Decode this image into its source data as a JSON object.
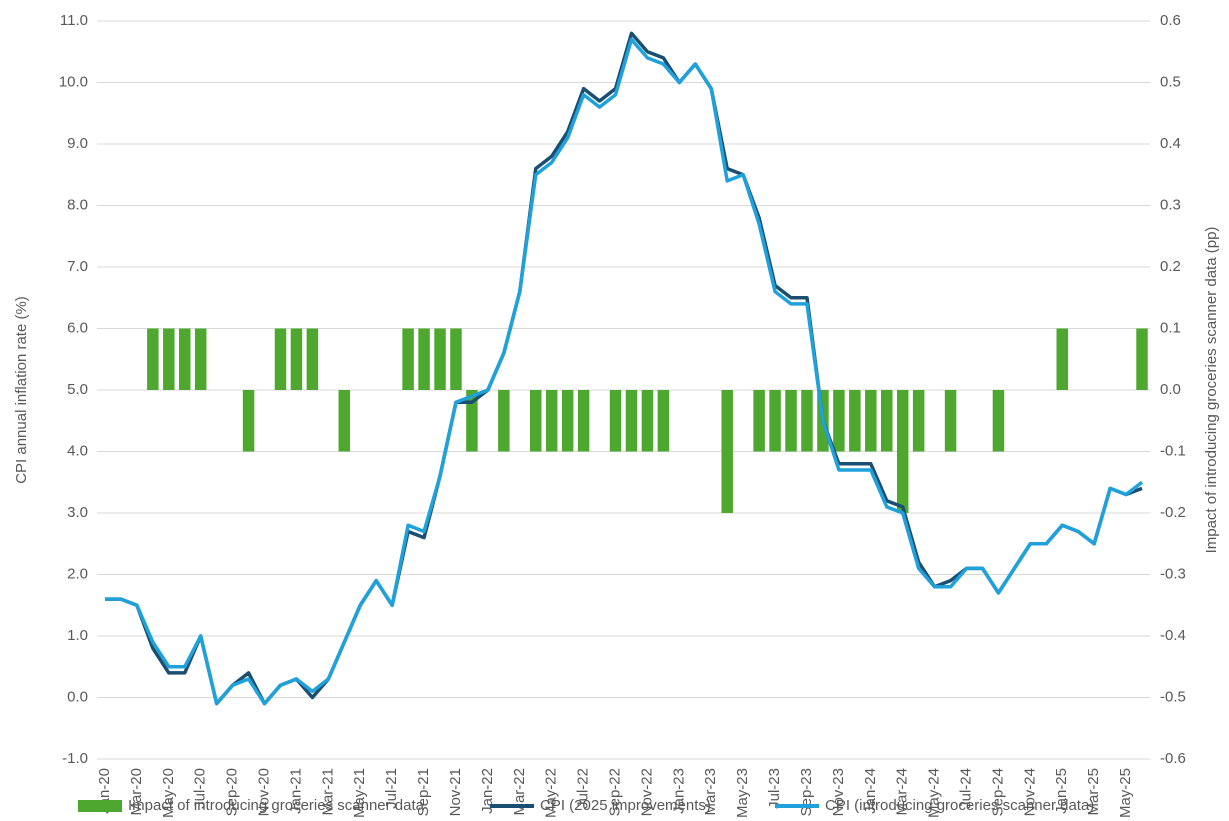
{
  "chart_data": {
    "type": "bar_line",
    "y_label": "CPI annual inflation rate (%)",
    "y2_label": "Impact of introducing groceries scanner data (pp)",
    "categories": [
      "Jan-20",
      null,
      "Mar-20",
      null,
      "May-20",
      null,
      "Jul-20",
      null,
      "Sep-20",
      null,
      "Nov-20",
      null,
      "Jan-21",
      null,
      "Mar-21",
      null,
      "May-21",
      null,
      "Jul-21",
      null,
      "Sep-21",
      null,
      "Nov-21",
      null,
      "Jan-22",
      null,
      "Mar-22",
      null,
      "May-22",
      null,
      "Jul-22",
      null,
      "Sep-22",
      null,
      "Nov-22",
      null,
      "Jan-23",
      null,
      "Mar-23",
      null,
      "May-23",
      null,
      "Jul-23",
      null,
      "Sep-23",
      null,
      "Nov-23",
      null,
      "Jan-24",
      null,
      "Mar-24",
      null,
      "May-24",
      null,
      "Jul-24",
      null,
      "Sep-24",
      null,
      "Nov-24",
      null,
      "Jan-25",
      null,
      "Mar-25",
      null,
      "May-25",
      null
    ],
    "series": [
      {
        "name": "Impact of introducing groceries scanner data",
        "type": "bar",
        "axis": "y2",
        "color": "#4ea72e",
        "values": [
          0,
          0,
          0,
          0.1,
          0.1,
          0.1,
          0.1,
          0,
          0,
          -0.1,
          0,
          0.1,
          0.1,
          0.1,
          0,
          -0.1,
          0,
          0,
          0,
          0.1,
          0.1,
          0.1,
          0.1,
          -0.1,
          0,
          -0.1,
          0,
          -0.1,
          -0.1,
          -0.1,
          -0.1,
          0,
          -0.1,
          -0.1,
          -0.1,
          -0.1,
          0,
          0,
          0,
          -0.2,
          0,
          -0.1,
          -0.1,
          -0.1,
          -0.1,
          -0.1,
          -0.1,
          -0.1,
          -0.1,
          -0.1,
          -0.2,
          -0.1,
          0,
          -0.1,
          0,
          0,
          -0.1,
          0,
          0,
          0,
          0.1,
          0,
          0,
          0,
          0,
          0.1
        ]
      },
      {
        "name": "CPI (2025 improvements)",
        "type": "line",
        "color": "#1b4f72",
        "values": [
          1.6,
          1.6,
          1.5,
          0.8,
          0.4,
          0.4,
          1.0,
          -0.1,
          0.2,
          0.4,
          -0.1,
          0.2,
          0.3,
          0.0,
          0.3,
          0.9,
          1.5,
          1.9,
          1.5,
          2.7,
          2.6,
          3.6,
          4.8,
          4.8,
          5.0,
          5.6,
          6.6,
          8.6,
          8.8,
          9.2,
          9.9,
          9.7,
          9.9,
          10.8,
          10.5,
          10.4,
          10.0,
          10.3,
          9.9,
          8.6,
          8.5,
          7.8,
          6.7,
          6.5,
          6.5,
          4.5,
          3.8,
          3.8,
          3.8,
          3.2,
          3.1,
          2.2,
          1.8,
          1.9,
          2.1,
          2.1,
          1.7,
          2.1,
          2.5,
          2.5,
          2.8,
          2.7,
          2.5,
          3.4,
          3.3,
          3.4
        ]
      },
      {
        "name": "CPI (introducing groceries scanner data)",
        "type": "line",
        "color": "#1fa2dc",
        "values": [
          1.6,
          1.6,
          1.5,
          0.9,
          0.5,
          0.5,
          1.0,
          -0.1,
          0.2,
          0.3,
          -0.1,
          0.2,
          0.3,
          0.1,
          0.3,
          0.9,
          1.5,
          1.9,
          1.5,
          2.8,
          2.7,
          3.6,
          4.8,
          4.9,
          5.0,
          5.6,
          6.6,
          8.5,
          8.7,
          9.1,
          9.8,
          9.6,
          9.8,
          10.7,
          10.4,
          10.3,
          10.0,
          10.3,
          9.9,
          8.4,
          8.5,
          7.7,
          6.6,
          6.4,
          6.4,
          4.5,
          3.7,
          3.7,
          3.7,
          3.1,
          3.0,
          2.1,
          1.8,
          1.8,
          2.1,
          2.1,
          1.7,
          2.1,
          2.5,
          2.5,
          2.8,
          2.7,
          2.5,
          3.4,
          3.3,
          3.5
        ]
      }
    ],
    "ylim": [
      -1,
      11
    ],
    "yticks": [
      {
        "value": -1,
        "label": "-1.0"
      },
      {
        "value": 0,
        "label": "0.0"
      },
      {
        "value": 1,
        "label": "1.0"
      },
      {
        "value": 2,
        "label": "2.0"
      },
      {
        "value": 3,
        "label": "3.0"
      },
      {
        "value": 4,
        "label": "4.0"
      },
      {
        "value": 5,
        "label": "5.0"
      },
      {
        "value": 6,
        "label": "6.0"
      },
      {
        "value": 7,
        "label": "7.0"
      },
      {
        "value": 8,
        "label": "8.0"
      },
      {
        "value": 9,
        "label": "9.0"
      },
      {
        "value": 10,
        "label": "10.0"
      },
      {
        "value": 11,
        "label": "11.0"
      }
    ],
    "y2lim": [
      -0.6,
      0.6
    ],
    "y2ticks": [
      -0.6,
      -0.5,
      -0.4,
      -0.3,
      -0.2,
      -0.1,
      {
        "value": 0,
        "label": "0.0"
      },
      0.1,
      0.2,
      0.3,
      0.4,
      0.5,
      0.6
    ],
    "grid": true,
    "legend": "bottom"
  }
}
